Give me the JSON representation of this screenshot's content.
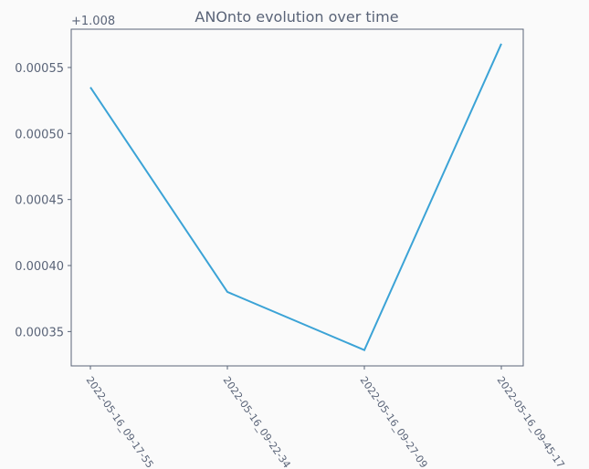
{
  "chart_data": {
    "type": "line",
    "title": "ANOnto evolution over time",
    "offset_label": "+1.008",
    "categories": [
      "2022-05-16_09-17-55",
      "2022-05-16_09-22-34",
      "2022-05-16_09-27-09",
      "2022-05-16_09-45-17"
    ],
    "values": [
      0.000535,
      0.00038,
      0.000336,
      0.000568
    ],
    "color": "#3ba3d6",
    "ylim": [
      0.000324,
      0.000579
    ],
    "yticks": [
      0.00035,
      {
        "value": 0.0004,
        "label": "0.00040"
      },
      0.00045,
      {
        "value": 0.0005,
        "label": "0.00050"
      },
      0.00055
    ],
    "grid": false
  }
}
